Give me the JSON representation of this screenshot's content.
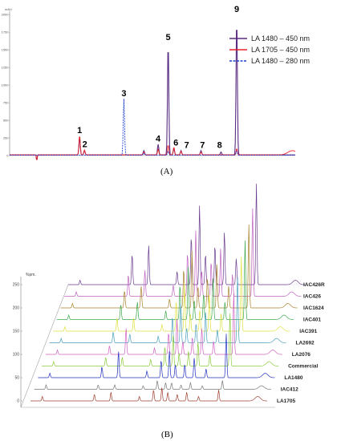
{
  "figure": {
    "label_a": "(A)",
    "label_b": "(B)"
  },
  "chart_data": [
    {
      "type": "line",
      "panel": "A",
      "title": "",
      "xlabel": "",
      "ylabel": "",
      "y_axis_unit": "mAU",
      "y_ticks": [
        "2000",
        "1750",
        "1500",
        "1250",
        "1000",
        "750",
        "500",
        "250",
        "0"
      ],
      "ylim": [
        0,
        2050
      ],
      "xlim": [
        0,
        100
      ],
      "legend_position": "top-right",
      "series": [
        {
          "name": "LA 1480 – 450 nm",
          "color": "#5b2c83",
          "dash": "solid",
          "peaks": [
            [
              24.5,
              240
            ],
            [
              26.2,
              60
            ],
            [
              47,
              60
            ],
            [
              52,
              150
            ],
            [
              55.5,
              1600
            ],
            [
              57.5,
              90
            ],
            [
              60,
              60
            ],
            [
              67,
              60
            ],
            [
              74,
              40
            ],
            [
              79.5,
              1950
            ]
          ],
          "baseline": 10
        },
        {
          "name": "LA 1705 – 450 nm",
          "color": "#e8222a",
          "dash": "solid",
          "peaks": [
            [
              24.5,
              280
            ],
            [
              26.2,
              70
            ],
            [
              47,
              40
            ],
            [
              52,
              80
            ],
            [
              55.5,
              140
            ],
            [
              57.5,
              110
            ],
            [
              60,
              50
            ],
            [
              67,
              40
            ],
            [
              79.5,
              90
            ],
            [
              99,
              60
            ]
          ],
          "baseline": 10
        },
        {
          "name": "LA 1480 – 280 nm",
          "color": "#1f3fd1",
          "dash": "dashed",
          "peaks": [
            [
              40,
              800
            ],
            [
              47,
              30
            ],
            [
              55.5,
              60
            ],
            [
              79.5,
              60
            ]
          ],
          "baseline": 5
        }
      ],
      "peak_labels": [
        {
          "label": "1",
          "x": 24.5,
          "y": 320
        },
        {
          "label": "2",
          "x": 26.3,
          "y": 120
        },
        {
          "label": "3",
          "x": 40,
          "y": 840
        },
        {
          "label": "4",
          "x": 52,
          "y": 200
        },
        {
          "label": "5",
          "x": 55.5,
          "y": 1640
        },
        {
          "label": "6",
          "x": 58.2,
          "y": 140
        },
        {
          "label": "7",
          "x": 62,
          "y": 110
        },
        {
          "label": "7",
          "x": 67.5,
          "y": 110
        },
        {
          "label": "8",
          "x": 73.5,
          "y": 110
        },
        {
          "label": "9",
          "x": 79.5,
          "y": 2040
        }
      ]
    },
    {
      "type": "line",
      "panel": "B",
      "title": "",
      "xlabel": "",
      "ylabel": "",
      "y_axis_unit": "%pm.",
      "y_ticks": [
        "250",
        "200",
        "150",
        "100",
        "50",
        "0"
      ],
      "ylim": [
        0,
        250
      ],
      "xlim": [
        0,
        100
      ],
      "series": [
        {
          "name": "IAC426R",
          "color": "#6a3d8f"
        },
        {
          "name": "IAC426",
          "color": "#c060c0"
        },
        {
          "name": "IAC1624",
          "color": "#a7832a"
        },
        {
          "name": "IAC401",
          "color": "#3aa84a"
        },
        {
          "name": "IAC391",
          "color": "#e0e040"
        },
        {
          "name": "LA2692",
          "color": "#4aa0c0"
        },
        {
          "name": "LA2076",
          "color": "#d060c0"
        },
        {
          "name": "Commercial",
          "color": "#8acb3a"
        },
        {
          "name": "LA1480",
          "color": "#2030c0"
        },
        {
          "name": "IAC412",
          "color": "#777777"
        },
        {
          "name": "LA1705",
          "color": "#a04030"
        }
      ],
      "peak_positions": [
        5,
        27,
        34,
        46,
        52,
        55.5,
        58,
        62,
        66,
        71,
        79.5,
        96
      ],
      "peak_heights": [
        [
          10,
          70,
          90,
          30,
          110,
          180,
          70,
          90,
          120,
          60,
          230,
          10
        ],
        [
          10,
          50,
          60,
          25,
          100,
          150,
          60,
          80,
          110,
          50,
          200,
          10
        ],
        [
          10,
          40,
          50,
          20,
          90,
          130,
          50,
          70,
          100,
          50,
          190,
          10
        ],
        [
          10,
          35,
          40,
          20,
          80,
          120,
          45,
          60,
          95,
          40,
          180,
          10
        ],
        [
          10,
          30,
          30,
          15,
          70,
          110,
          40,
          50,
          85,
          40,
          170,
          10
        ],
        [
          10,
          25,
          20,
          15,
          60,
          90,
          35,
          45,
          70,
          30,
          150,
          10
        ],
        [
          10,
          20,
          60,
          15,
          50,
          80,
          30,
          40,
          60,
          30,
          140,
          10
        ],
        [
          10,
          20,
          20,
          15,
          45,
          70,
          30,
          35,
          55,
          25,
          120,
          10
        ],
        [
          10,
          25,
          60,
          15,
          40,
          60,
          30,
          30,
          45,
          20,
          100,
          10
        ],
        [
          10,
          10,
          10,
          8,
          20,
          15,
          15,
          10,
          15,
          8,
          20,
          8
        ],
        [
          10,
          15,
          20,
          10,
          25,
          30,
          20,
          15,
          20,
          10,
          25,
          10
        ]
      ]
    }
  ]
}
